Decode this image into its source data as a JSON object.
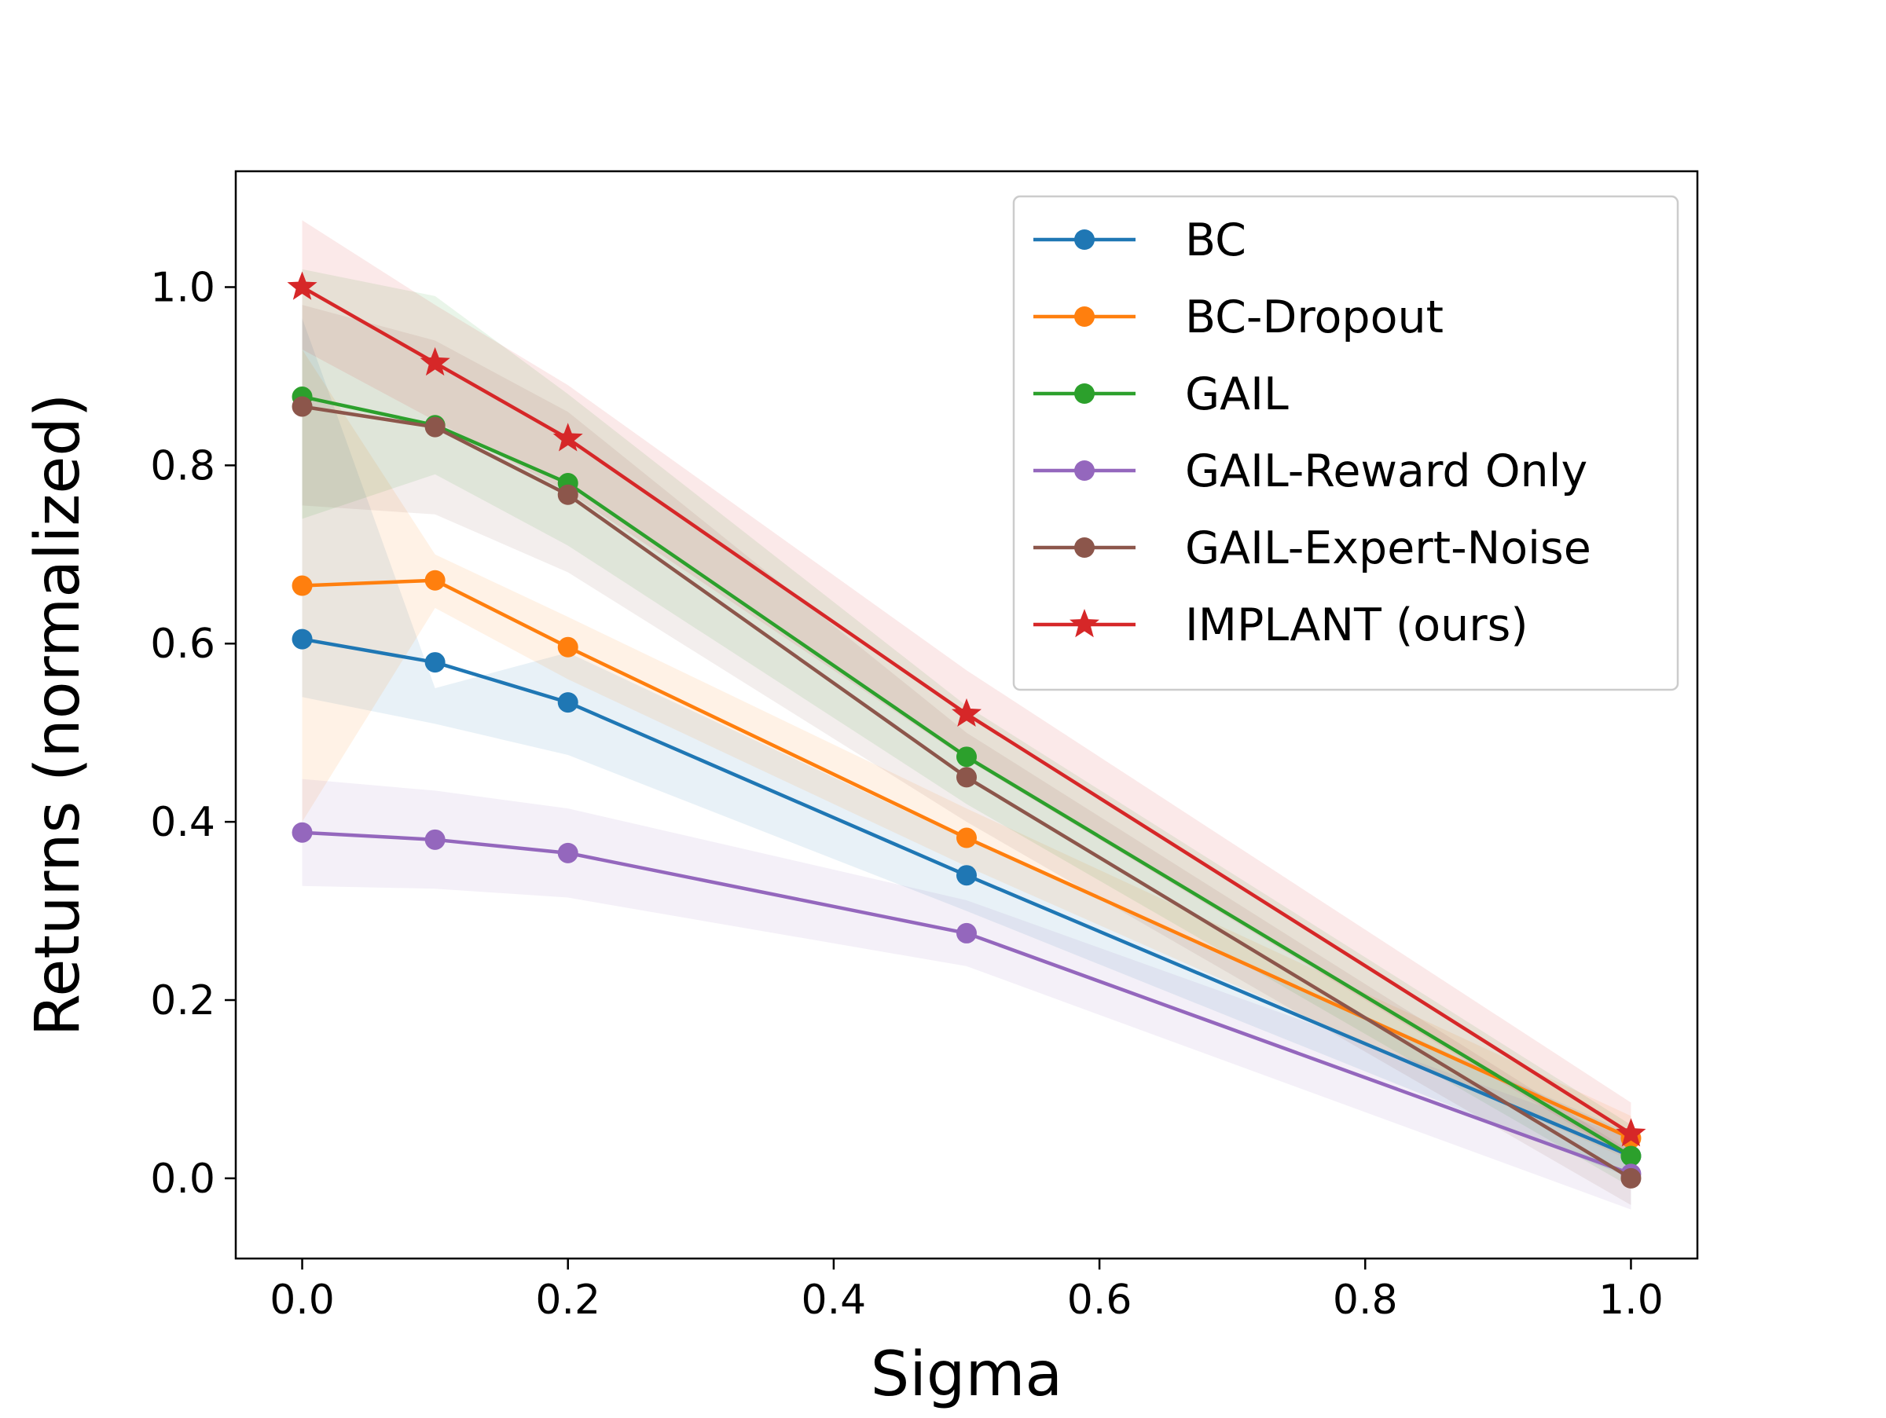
{
  "chart_data": {
    "type": "line",
    "title": "",
    "xlabel": "Sigma",
    "ylabel": "Returns (normalized)",
    "xlim": [
      -0.05,
      1.05
    ],
    "ylim": [
      -0.09,
      1.13
    ],
    "xticks": [
      0.0,
      0.2,
      0.4,
      0.6,
      0.8,
      1.0
    ],
    "yticks": [
      0.0,
      0.2,
      0.4,
      0.6,
      0.8,
      1.0
    ],
    "xtick_labels": [
      "0.0",
      "0.2",
      "0.4",
      "0.6",
      "0.8",
      "1.0"
    ],
    "ytick_labels": [
      "0.0",
      "0.2",
      "0.4",
      "0.6",
      "0.8",
      "1.0"
    ],
    "grid": false,
    "legend_position": "top-right",
    "x": [
      0.0,
      0.1,
      0.2,
      0.5,
      1.0
    ],
    "series": [
      {
        "name": "BC",
        "color": "#1f77b4",
        "marker": "circle",
        "values": [
          0.605,
          0.579,
          0.534,
          0.34,
          0.025
        ],
        "band_lower": [
          0.54,
          0.51,
          0.475,
          0.3,
          0.0
        ],
        "band_upper": [
          0.965,
          0.55,
          0.59,
          0.38,
          0.05
        ]
      },
      {
        "name": "BC-Dropout",
        "color": "#ff7f0e",
        "marker": "circle",
        "values": [
          0.665,
          0.671,
          0.596,
          0.382,
          0.045
        ],
        "band_lower": [
          0.4,
          0.64,
          0.56,
          0.35,
          0.02
        ],
        "band_upper": [
          0.93,
          0.7,
          0.63,
          0.415,
          0.07
        ]
      },
      {
        "name": "GAIL",
        "color": "#2ca02c",
        "marker": "circle",
        "values": [
          0.877,
          0.845,
          0.78,
          0.473,
          0.025
        ],
        "band_lower": [
          0.74,
          0.79,
          0.71,
          0.42,
          -0.01
        ],
        "band_upper": [
          1.02,
          0.99,
          0.88,
          0.53,
          0.06
        ]
      },
      {
        "name": "GAIL-Reward Only",
        "color": "#9467bd",
        "marker": "circle",
        "values": [
          0.388,
          0.38,
          0.365,
          0.275,
          0.005
        ],
        "band_lower": [
          0.328,
          0.325,
          0.315,
          0.238,
          -0.035
        ],
        "band_upper": [
          0.448,
          0.435,
          0.415,
          0.312,
          0.045
        ]
      },
      {
        "name": "GAIL-Expert-Noise",
        "color": "#8c564b",
        "marker": "circle",
        "values": [
          0.866,
          0.843,
          0.767,
          0.45,
          0.0
        ],
        "band_lower": [
          0.755,
          0.745,
          0.68,
          0.4,
          -0.03
        ],
        "band_upper": [
          0.98,
          0.94,
          0.86,
          0.5,
          0.03
        ]
      },
      {
        "name": "IMPLANT (ours)",
        "color": "#d62728",
        "marker": "star",
        "values": [
          1.0,
          0.915,
          0.83,
          0.521,
          0.05
        ],
        "band_lower": [
          0.93,
          0.85,
          0.77,
          0.47,
          0.02
        ],
        "band_upper": [
          1.075,
          0.98,
          0.89,
          0.57,
          0.085
        ]
      }
    ]
  }
}
